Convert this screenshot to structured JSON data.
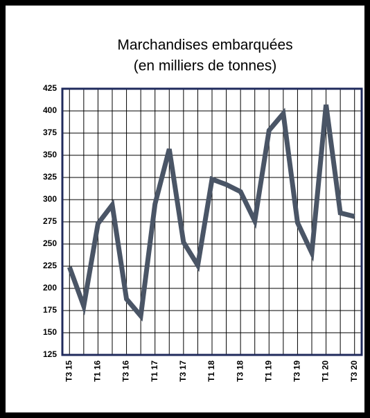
{
  "chart_data": {
    "type": "line",
    "title": "Marchandises embarquées",
    "subtitle": "(en milliers de tonnes)",
    "categories": [
      "T3 15",
      null,
      "T1 16",
      null,
      "T3 16",
      null,
      "T1 17",
      null,
      "T3 17",
      null,
      "T1 18",
      null,
      "T3 18",
      null,
      "T1 19",
      null,
      "T3 19",
      null,
      "T1 20",
      null,
      "T3 20"
    ],
    "values": [
      224,
      180,
      273,
      294,
      188,
      169,
      295,
      357,
      252,
      226,
      323,
      317,
      309,
      276,
      378,
      397,
      274,
      240,
      407,
      285,
      281
    ],
    "color": "#4a5566",
    "ylim": [
      125,
      425
    ],
    "yticks": [
      125,
      150,
      175,
      200,
      225,
      250,
      275,
      300,
      325,
      350,
      375,
      400,
      425
    ],
    "grid": true
  }
}
